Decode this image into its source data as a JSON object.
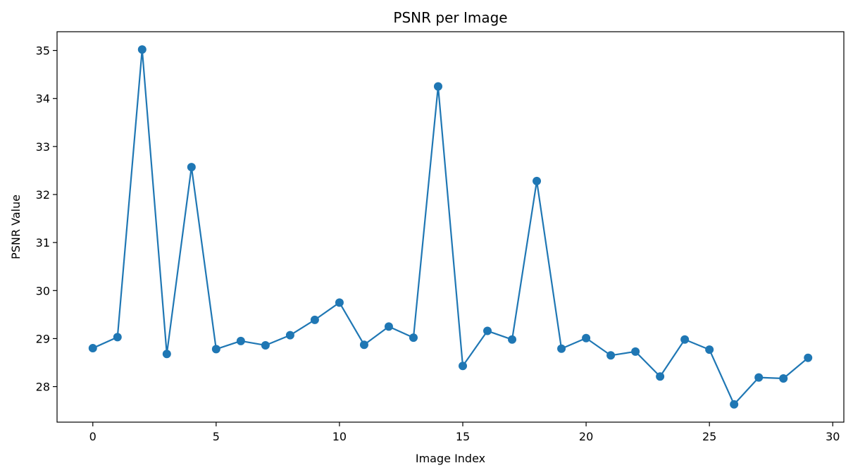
{
  "chart_data": {
    "type": "line",
    "title": "PSNR per Image",
    "xlabel": "Image Index",
    "ylabel": "PSNR Value",
    "x": [
      0,
      1,
      2,
      3,
      4,
      5,
      6,
      7,
      8,
      9,
      10,
      11,
      12,
      13,
      14,
      15,
      16,
      17,
      18,
      19,
      20,
      21,
      22,
      23,
      24,
      25,
      26,
      27,
      28,
      29
    ],
    "series": [
      {
        "values": [
          28.8,
          29.03,
          35.02,
          28.68,
          32.57,
          28.78,
          28.95,
          28.86,
          29.07,
          29.39,
          29.75,
          28.87,
          29.25,
          29.02,
          34.25,
          28.43,
          29.16,
          28.98,
          32.28,
          28.79,
          29.01,
          28.65,
          28.73,
          28.21,
          28.98,
          28.77,
          27.63,
          28.19,
          28.17,
          28.6
        ],
        "color": "#1f77b4",
        "marker": "circle"
      }
    ],
    "xlim": [
      -1.45,
      30.45
    ],
    "ylim": [
      27.26,
      35.39
    ],
    "xticks": [
      0,
      5,
      10,
      15,
      20,
      25,
      30
    ],
    "yticks": [
      28,
      29,
      30,
      31,
      32,
      33,
      34,
      35
    ],
    "grid": false,
    "legend": "none"
  }
}
